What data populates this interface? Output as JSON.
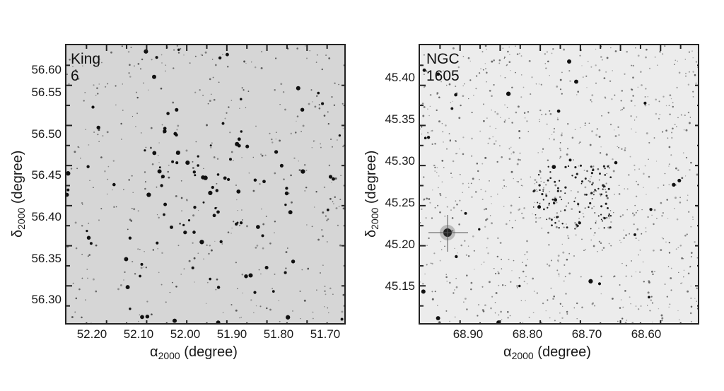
{
  "panels": [
    {
      "title": "King 6",
      "background": "#d6d6d6",
      "xlabel_symbol": "α",
      "xlabel_sub": "2000",
      "xlabel_unit": "(degree)",
      "ylabel_symbol": "δ",
      "ylabel_sub": "2000",
      "ylabel_unit": "(degree)",
      "xticks": [
        "52.20",
        "52.10",
        "52.00",
        "51.90",
        "51.80",
        "51.70"
      ],
      "yticks": [
        "56.60",
        "56.55",
        "56.50",
        "56.45",
        "56.40",
        "56.35",
        "56.30"
      ]
    },
    {
      "title": "NGC 1605",
      "background": "#ececec",
      "xlabel_symbol": "α",
      "xlabel_sub": "2000",
      "xlabel_unit": "(degree)",
      "ylabel_symbol": "δ",
      "ylabel_sub": "2000",
      "ylabel_unit": "(degree)",
      "xticks": [
        "68.90",
        "68.80",
        "68.70",
        "68.60"
      ],
      "yticks": [
        "45.40",
        "45.35",
        "45.30",
        "45.25",
        "45.20",
        "45.15"
      ]
    }
  ]
}
